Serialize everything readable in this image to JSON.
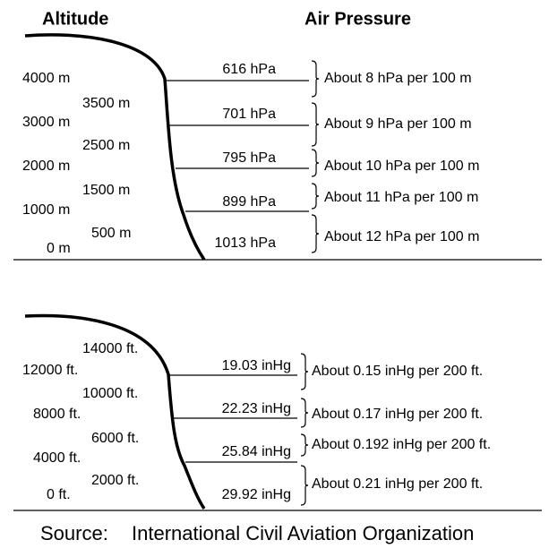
{
  "header": {
    "altitude": "Altitude",
    "pressure": "Air Pressure"
  },
  "metric": {
    "altitudes": [
      "4000 m",
      "3500 m",
      "3000 m",
      "2500 m",
      "2000 m",
      "1500 m",
      "1000 m",
      "500 m",
      "0 m"
    ],
    "pressures": [
      "616 hPa",
      "701 hPa",
      "795 hPa",
      "899 hPa",
      "1013 hPa"
    ],
    "rates": [
      "About 8 hPa per 100 m",
      "About 9 hPa per 100 m",
      "About 10 hPa per 100 m",
      "About 11 hPa per 100 m",
      "About 12 hPa per 100 m"
    ]
  },
  "imperial": {
    "altitudes": [
      "14000 ft.",
      "12000 ft.",
      "10000 ft.",
      "8000 ft.",
      "6000 ft.",
      "4000 ft.",
      "2000 ft.",
      "0 ft."
    ],
    "pressures": [
      "19.03 inHg",
      "22.23 inHg",
      "25.84 inHg",
      "29.92 inHg"
    ],
    "rates": [
      "About 0.15 inHg per 200 ft.",
      "About 0.17 inHg per 200 ft.",
      "About 0.192 inHg per 200 ft.",
      "About 0.21 inHg per 200 ft."
    ]
  },
  "source": {
    "label": "Source:",
    "name": "International Civil Aviation Organization"
  }
}
